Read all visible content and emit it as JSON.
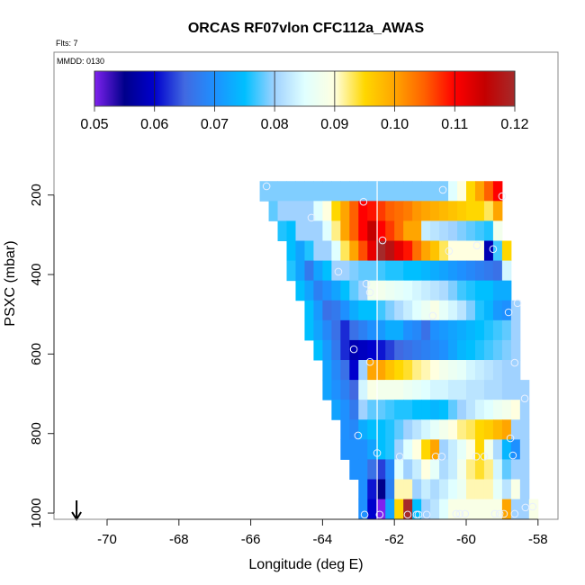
{
  "chart_data": {
    "type": "heatmap",
    "title": "ORCAS RF07vlon CFC112a_AWAS",
    "flights_label": "Flts: 7",
    "date_label": "MMDD: 0130",
    "xlabel": "Longitude (deg E)",
    "ylabel": "PSXC (mbar)",
    "xlim": [
      -71.5,
      -57.5
    ],
    "ylim": [
      1015,
      40
    ],
    "x_ticks": [
      -70,
      -68,
      -66,
      -64,
      -62,
      -60,
      -58
    ],
    "x_tick_labels": [
      "-70",
      "-68",
      "-66",
      "-64",
      "-62",
      "-60",
      "-58"
    ],
    "y_ticks": [
      200,
      400,
      600,
      800,
      1000
    ],
    "y_tick_labels": [
      "200",
      "400",
      "600",
      "800",
      "1000"
    ],
    "colorbar": {
      "range": [
        0.05,
        0.12
      ],
      "ticks": [
        0.05,
        0.06,
        0.07,
        0.08,
        0.09,
        0.1,
        0.11,
        0.12
      ],
      "tick_labels": [
        "0.05",
        "0.06",
        "0.07",
        "0.08",
        "0.09",
        "0.10",
        "0.11",
        "0.12"
      ],
      "stops": [
        [
          0.05,
          "#7f22ee"
        ],
        [
          0.055,
          "#00008b"
        ],
        [
          0.06,
          "#0000cd"
        ],
        [
          0.065,
          "#4169e1"
        ],
        [
          0.07,
          "#1e90ff"
        ],
        [
          0.075,
          "#00bfff"
        ],
        [
          0.08,
          "#a0d2ff"
        ],
        [
          0.085,
          "#e0ffff"
        ],
        [
          0.09,
          "#ffffe0"
        ],
        [
          0.095,
          "#ffd700"
        ],
        [
          0.1,
          "#ffa500"
        ],
        [
          0.105,
          "#ff6000"
        ],
        [
          0.11,
          "#ff0000"
        ],
        [
          0.115,
          "#c40000"
        ],
        [
          0.12,
          "#a52a2a"
        ]
      ]
    },
    "grid": {
      "lon_start": -65.75,
      "lon_step": 0.25,
      "p_start": 165,
      "p_step": 50,
      "rows": [
        {
          "start": 0,
          "values": [
            0.079,
            0.079,
            0.079,
            0.079,
            0.079,
            0.079,
            0.079,
            0.079,
            0.079,
            0.079,
            0.079,
            0.079,
            0.079,
            0.079,
            0.079,
            0.079,
            0.079,
            0.079,
            0.079,
            0.079,
            0.079,
            0.085,
            0.09,
            0.095,
            0.1,
            0.105,
            0.11
          ]
        },
        {
          "start": 1,
          "values": [
            0.078,
            0.08,
            0.08,
            0.08,
            0.08,
            0.085,
            0.09,
            0.095,
            0.1,
            0.105,
            0.11,
            0.109,
            0.107,
            0.105,
            0.104,
            0.103,
            0.101,
            0.1,
            0.099,
            0.098,
            0.097,
            0.096,
            0.095,
            0.095,
            0.093,
            0.1
          ]
        },
        {
          "start": 2,
          "values": [
            0.076,
            0.075,
            0.08,
            0.08,
            0.08,
            0.085,
            0.092,
            0.1,
            0.105,
            0.11,
            0.115,
            0.11,
            0.107,
            0.104,
            0.1,
            0.1,
            0.083,
            0.082,
            0.081,
            0.08,
            0.079,
            0.078,
            0.077,
            0.076,
            0.088
          ]
        },
        {
          "start": 3,
          "values": [
            0.075,
            0.072,
            0.076,
            0.08,
            0.08,
            0.085,
            0.093,
            0.1,
            0.106,
            0.112,
            0.12,
            0.117,
            0.112,
            0.109,
            0.104,
            0.1,
            0.097,
            0.093,
            0.09,
            0.09,
            0.09,
            0.09,
            0.058,
            0.077,
            0.095
          ]
        },
        {
          "start": 3,
          "values": [
            0.076,
            0.072,
            0.067,
            0.072,
            0.075,
            0.08,
            0.08,
            0.079,
            0.078,
            0.078,
            0.077,
            0.076,
            0.076,
            0.075,
            0.075,
            0.074,
            0.073,
            0.072,
            0.071,
            0.07,
            0.069,
            0.068,
            0.067,
            0.066,
            0.084
          ]
        },
        {
          "start": 4,
          "values": [
            0.075,
            0.072,
            0.068,
            0.07,
            0.072,
            0.075,
            0.078,
            0.08,
            0.088,
            0.088,
            0.087,
            0.086,
            0.085,
            0.084,
            0.083,
            0.082,
            0.081,
            0.079,
            0.077,
            0.076,
            0.075,
            0.075,
            0.073,
            0.073
          ]
        },
        {
          "start": 5,
          "values": [
            0.075,
            0.071,
            0.066,
            0.067,
            0.07,
            0.073,
            0.075,
            0.075,
            0.077,
            0.079,
            0.081,
            0.083,
            0.085,
            0.087,
            0.089,
            0.086,
            0.084,
            0.082,
            0.079,
            0.076,
            0.074,
            0.071,
            0.07,
            0.08
          ]
        },
        {
          "start": 5,
          "values": [
            0.075,
            0.072,
            0.069,
            0.066,
            0.062,
            0.066,
            0.068,
            0.07,
            0.071,
            0.073,
            0.073,
            0.07,
            0.069,
            0.066,
            0.07,
            0.071,
            0.072,
            0.073,
            0.074,
            0.075,
            0.076,
            0.077,
            0.078,
            0.08
          ]
        },
        {
          "start": 6,
          "values": [
            0.075,
            0.071,
            0.067,
            0.062,
            0.058,
            0.059,
            0.06,
            0.061,
            0.063,
            0.065,
            0.066,
            0.067,
            0.068,
            0.069,
            0.07,
            0.072,
            0.074,
            0.075,
            0.076,
            0.077,
            0.078,
            0.079,
            0.08
          ]
        },
        {
          "start": 7,
          "values": [
            0.072,
            0.069,
            0.066,
            0.06,
            0.08,
            0.1,
            0.1,
            0.097,
            0.095,
            0.094,
            0.092,
            0.091,
            0.09,
            0.088,
            0.087,
            0.086,
            0.084,
            0.083,
            0.082,
            0.081,
            0.08,
            0.08
          ]
        },
        {
          "start": 7,
          "values": [
            0.072,
            0.07,
            0.068,
            0.065,
            0.084,
            0.089,
            0.088,
            0.088,
            0.088,
            0.087,
            0.086,
            0.085,
            0.084,
            0.084,
            0.083,
            0.083,
            0.082,
            0.082,
            0.081,
            0.081,
            0.08,
            0.08,
            0.08
          ]
        },
        {
          "start": 8,
          "values": [
            0.072,
            0.07,
            0.067,
            0.08,
            0.078,
            0.078,
            0.077,
            0.076,
            0.076,
            0.075,
            0.075,
            0.074,
            0.075,
            0.078,
            0.08,
            0.082,
            0.084,
            0.085,
            0.087,
            0.088,
            0.09,
            0.08
          ]
        },
        {
          "start": 9,
          "values": [
            0.07,
            0.069,
            0.073,
            0.075,
            0.075,
            0.076,
            0.078,
            0.08,
            0.082,
            0.084,
            0.086,
            0.088,
            0.09,
            0.092,
            0.093,
            0.095,
            0.096,
            0.098,
            0.1,
            0.08,
            0.08
          ]
        },
        {
          "start": 9,
          "values": [
            0.07,
            0.07,
            0.07,
            0.072,
            0.075,
            0.076,
            0.08,
            0.085,
            0.09,
            0.095,
            0.1,
            0.08,
            0.083,
            0.086,
            0.09,
            0.095,
            0.088,
            0.081,
            0.074,
            0.07,
            0.08
          ]
        },
        {
          "start": 10,
          "values": [
            0.07,
            0.07,
            0.066,
            0.063,
            0.069,
            0.085,
            0.08,
            0.083,
            0.09,
            0.086,
            0.081,
            0.083,
            0.088,
            0.092,
            0.094,
            0.092,
            0.084,
            0.078,
            0.08,
            0.08
          ]
        },
        {
          "start": 11,
          "values": [
            0.07,
            0.061,
            0.055,
            0.068,
            0.091,
            0.091,
            0.08,
            0.083,
            0.081,
            0.083,
            0.085,
            0.087,
            0.091,
            0.091,
            0.091,
            0.086,
            0.082,
            0.089,
            0.08
          ]
        },
        {
          "start": 11,
          "values": [
            0.07,
            0.06,
            0.05,
            0.072,
            0.095,
            0.12,
            0.075,
            0.08,
            0.082,
            0.085,
            0.089,
            0.089,
            0.089,
            0.089,
            0.089,
            0.089,
            0.1,
            0.08,
            0.08,
            0.089
          ]
        }
      ]
    },
    "sample_points": [
      [
        -65.56,
        178
      ],
      [
        -60.65,
        187
      ],
      [
        -59.0,
        203
      ],
      [
        -62.86,
        217
      ],
      [
        -64.31,
        257
      ],
      [
        -62.33,
        314
      ],
      [
        -60.48,
        341
      ],
      [
        -59.7,
        327
      ],
      [
        -59.25,
        336
      ],
      [
        -63.56,
        393
      ],
      [
        -62.78,
        423
      ],
      [
        -62.68,
        445
      ],
      [
        -58.57,
        472
      ],
      [
        -58.82,
        495
      ],
      [
        -60.93,
        504
      ],
      [
        -63.13,
        588
      ],
      [
        -62.68,
        620
      ],
      [
        -58.65,
        622
      ],
      [
        -58.37,
        712
      ],
      [
        -63.01,
        805
      ],
      [
        -58.77,
        812
      ],
      [
        -62.48,
        849
      ],
      [
        -61.85,
        858
      ],
      [
        -60.85,
        858
      ],
      [
        -60.68,
        858
      ],
      [
        -59.72,
        858
      ],
      [
        -59.5,
        858
      ],
      [
        -58.7,
        855
      ],
      [
        -62.83,
        1004
      ],
      [
        -62.41,
        1004
      ],
      [
        -61.63,
        1004
      ],
      [
        -61.38,
        1004
      ],
      [
        -61.33,
        1004
      ],
      [
        -61.1,
        1004
      ],
      [
        -60.28,
        1002
      ],
      [
        -60.18,
        1002
      ],
      [
        -60.03,
        1002
      ],
      [
        -59.2,
        1002
      ],
      [
        -59.07,
        1002
      ],
      [
        -58.95,
        1002
      ],
      [
        -58.65,
        1002
      ],
      [
        -58.35,
        986
      ],
      [
        -58.15,
        984
      ]
    ],
    "reference_longitude": -62.48,
    "arrow_longitude": -70.85
  }
}
